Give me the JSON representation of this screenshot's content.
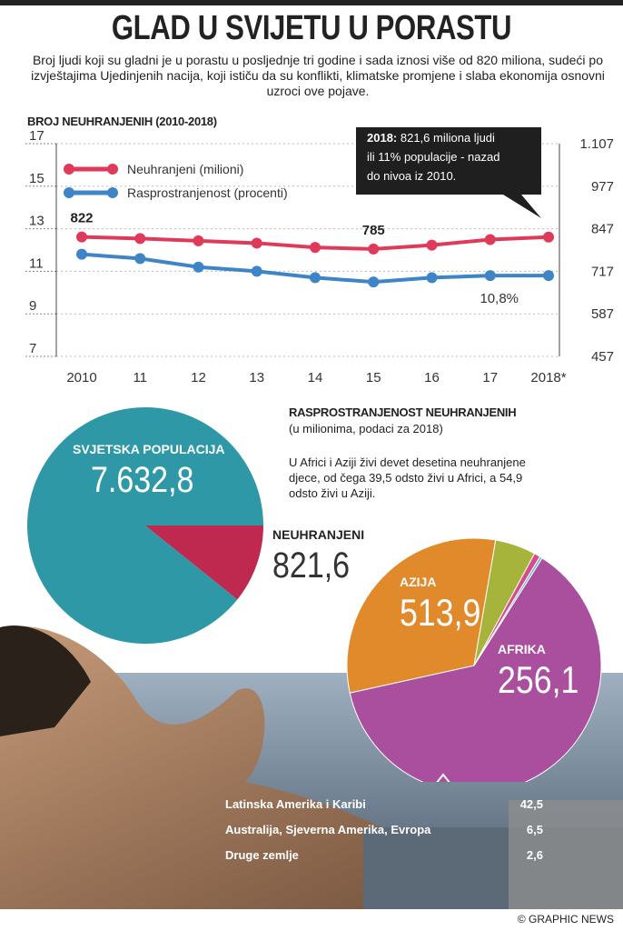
{
  "title": "GLAD U SVIJETU U PORASTU",
  "intro": "Broj ljudi koji su gladni je u porastu u posljednje tri godine i sada iznosi više od 820 miliona, sudeći po izvještajima Ujedinjenih nacija, koji ističu da su konflikti, klimatske promjene i slaba ekonomija osnovni uzroci ove pojave.",
  "credit": "© GRAPHIC NEWS",
  "colors": {
    "red": "#e03a5a",
    "blue": "#3d85c6",
    "teal": "#2e98a6",
    "crimson": "#c0294f",
    "purple": "#a94f9e",
    "orange": "#e08a2c",
    "green": "#a6b43c",
    "pink": "#d84c8a",
    "lightblue": "#5bbce0"
  },
  "chart_data": [
    {
      "type": "line",
      "title": "BROJ NEUHRANJENIH (2010-2018)",
      "x": [
        "2010",
        "11",
        "12",
        "13",
        "14",
        "15",
        "16",
        "17",
        "2018*"
      ],
      "ylim": [
        7,
        17
      ],
      "left_ticks": [
        "17",
        "15",
        "13",
        "11",
        "9",
        "7"
      ],
      "right_ticks": [
        "1.107",
        "977",
        "847",
        "717",
        "587",
        "457"
      ],
      "series": [
        {
          "name": "Neuhranjeni (milioni)",
          "axis": "right",
          "values": [
            822,
            817,
            810,
            803,
            790,
            785,
            797,
            814,
            821.6
          ]
        },
        {
          "name": "Rasprostranjenost (procenti)",
          "axis": "left",
          "values": [
            11.8,
            11.6,
            11.2,
            11.0,
            10.7,
            10.5,
            10.7,
            10.8,
            10.8
          ]
        }
      ],
      "data_labels": {
        "first": "822",
        "min": "785",
        "last_pct": "10,8%"
      },
      "annotation_bold": "2018:",
      "annotation_lines": [
        " 821,6 miliona ljudi",
        "ili 11% populacije - nazad",
        "do nivoa iz 2010."
      ]
    },
    {
      "type": "pie",
      "title": "RASPROSTRANJENOST NEUHRANJENIH",
      "subtitle": "(u milionima, podaci za 2018)",
      "note": "U Africi i Aziji živi devet desetina neuhranjene djece, od čega 39,5 odsto živi u Africi, a 54,9 odsto živi u Aziji.",
      "world": {
        "label": "SVJETSKA POPULACIJA",
        "value": "7.632,8",
        "num": 7632.8
      },
      "undernourished": {
        "label": "NEUHRANJENI",
        "value": "821,6",
        "num": 821.6
      },
      "slices": [
        {
          "label": "AZIJA",
          "value": "513,9",
          "num": 513.9
        },
        {
          "label": "AFRIKA",
          "value": "256,1",
          "num": 256.1
        },
        {
          "label": "Latinska Amerika i Karibi",
          "value": "42,5",
          "num": 42.5
        },
        {
          "label": "Australija, Sjeverna Amerika, Evropa",
          "value": "6,5",
          "num": 6.5
        },
        {
          "label": "Druge zemlje",
          "value": "2,6",
          "num": 2.6
        }
      ]
    }
  ]
}
